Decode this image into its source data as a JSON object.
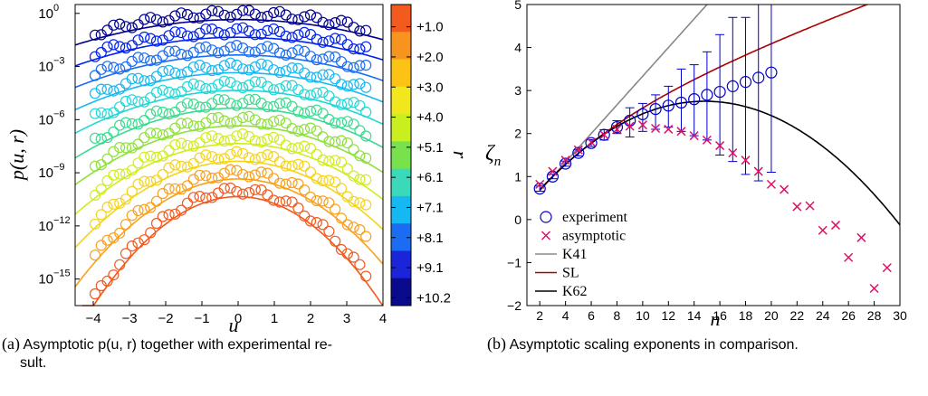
{
  "chart_data": [
    {
      "type": "line",
      "title": "",
      "xlabel": "u",
      "ylabel": "p(u, r)",
      "xlim": [
        -4.5,
        4
      ],
      "ylim_log10": [
        -16.5,
        0.5
      ],
      "yscale": "log",
      "xticks": [
        "−4",
        "−3",
        "−2",
        "−1",
        "0",
        "1",
        "2",
        "3",
        "4"
      ],
      "yticks": [
        {
          "exp": "0",
          "value": 0
        },
        {
          "exp": "−3",
          "value": -3
        },
        {
          "exp": "−6",
          "value": -6
        },
        {
          "exp": "−9",
          "value": -9
        },
        {
          "exp": "−12",
          "value": -12
        },
        {
          "exp": "−15",
          "value": -15
        }
      ],
      "ytick_base": "10",
      "colorbar": {
        "label": "r",
        "ticks": [
          "+1.0",
          "+2.0",
          "+3.0",
          "+4.0",
          "+5.1",
          "+6.1",
          "+7.1",
          "+8.1",
          "+9.1",
          "+10.2"
        ],
        "colors": [
          "#f25a1e",
          "#f7941d",
          "#fcc314",
          "#f2e61c",
          "#c9ef1f",
          "#78e24d",
          "#39d9b9",
          "#15b8f3",
          "#1a6df2",
          "#1a24d8",
          "#0a0a8c"
        ]
      },
      "series": [
        {
          "offset": 0.0,
          "width": 1.75,
          "color": "#00008f"
        },
        {
          "offset": -1.0,
          "width": 1.65,
          "color": "#0022ee"
        },
        {
          "offset": -2.0,
          "width": 1.55,
          "color": "#1a6df2"
        },
        {
          "offset": -3.0,
          "width": 1.45,
          "color": "#15b8f3"
        },
        {
          "offset": -4.0,
          "width": 1.35,
          "color": "#20d8d8"
        },
        {
          "offset": -5.0,
          "width": 1.25,
          "color": "#3adb90"
        },
        {
          "offset": -6.0,
          "width": 1.15,
          "color": "#8ee03c"
        },
        {
          "offset": -7.0,
          "width": 1.05,
          "color": "#d2ec1e"
        },
        {
          "offset": -8.0,
          "width": 0.95,
          "color": "#f4d41a"
        },
        {
          "offset": -9.0,
          "width": 0.85,
          "color": "#f7a11d"
        },
        {
          "offset": -10.0,
          "width": 0.75,
          "color": "#f25a1e"
        }
      ]
    },
    {
      "type": "scatter",
      "title": "",
      "xlabel": "n",
      "ylabel": "ζ",
      "ylabel_sub": "n",
      "xlim": [
        1,
        30
      ],
      "ylim": [
        -2,
        5
      ],
      "xticks": [
        2,
        4,
        6,
        8,
        10,
        12,
        14,
        16,
        18,
        20,
        22,
        24,
        26,
        28,
        30
      ],
      "yticks": [
        {
          "label": "−2",
          "value": -2
        },
        {
          "label": "−1",
          "value": -1
        },
        {
          "label": "0",
          "value": 0
        },
        {
          "label": "1",
          "value": 1
        },
        {
          "label": "2",
          "value": 2
        },
        {
          "label": "3",
          "value": 3
        },
        {
          "label": "4",
          "value": 4
        },
        {
          "label": "5",
          "value": 5
        }
      ],
      "legend": {
        "placement": "bottom-left",
        "entries": [
          {
            "label": "experiment",
            "marker": "circle",
            "color": "#0000cc"
          },
          {
            "label": "asymptotic",
            "marker": "x",
            "color": "#dd1166"
          },
          {
            "label": "K41",
            "marker": "line",
            "color": "#888888"
          },
          {
            "label": "SL",
            "marker": "line",
            "color": "#aa0000"
          },
          {
            "label": "K62",
            "marker": "line",
            "color": "#000000"
          }
        ]
      },
      "experiment": {
        "n": [
          2,
          3,
          4,
          5,
          6,
          7,
          8,
          9,
          10,
          11,
          12,
          13,
          14,
          15,
          16,
          17,
          18,
          19,
          20
        ],
        "zeta": [
          0.72,
          1.0,
          1.3,
          1.55,
          1.78,
          1.97,
          2.15,
          2.3,
          2.45,
          2.57,
          2.65,
          2.72,
          2.8,
          2.9,
          2.97,
          3.1,
          3.2,
          3.3,
          3.42
        ],
        "err_low": [
          0.66,
          0.95,
          1.24,
          1.48,
          1.7,
          1.85,
          2.0,
          1.92,
          2.05,
          2.1,
          2.15,
          2.05,
          1.95,
          1.85,
          1.5,
          1.35,
          1.05,
          0.9,
          1.1
        ],
        "err_high": [
          0.78,
          1.05,
          1.36,
          1.62,
          1.86,
          2.09,
          2.3,
          2.6,
          2.7,
          2.9,
          3.1,
          3.5,
          3.6,
          3.9,
          4.3,
          4.7,
          4.7,
          5.0,
          5.2
        ]
      },
      "asymptotic": {
        "n": [
          2,
          3,
          4,
          5,
          6,
          7,
          8,
          9,
          10,
          11,
          12,
          13,
          14,
          15,
          16,
          17,
          18,
          19,
          20,
          21,
          22,
          23,
          24,
          25,
          26,
          27,
          28,
          29
        ],
        "zeta": [
          0.82,
          1.12,
          1.38,
          1.62,
          1.8,
          1.97,
          2.1,
          2.17,
          2.2,
          2.12,
          2.1,
          2.05,
          1.95,
          1.85,
          1.72,
          1.55,
          1.38,
          1.12,
          0.82,
          0.7,
          0.3,
          0.32,
          -0.25,
          -0.13,
          -0.88,
          -0.42,
          -1.6,
          -1.12
        ]
      },
      "curves": {
        "K41": "n/3",
        "SL": "n/9 + 2(1 - (2/3)^(n/3))",
        "K62": "n/3 - 0.0125 n(n-3)"
      }
    }
  ],
  "captions": [
    {
      "tag": "(a)",
      "line1": "Asymptotic p(u, r) together with experimental re-",
      "line2": "sult."
    },
    {
      "tag": "(b)",
      "line1": "Asymptotic scaling exponents in comparison."
    }
  ]
}
